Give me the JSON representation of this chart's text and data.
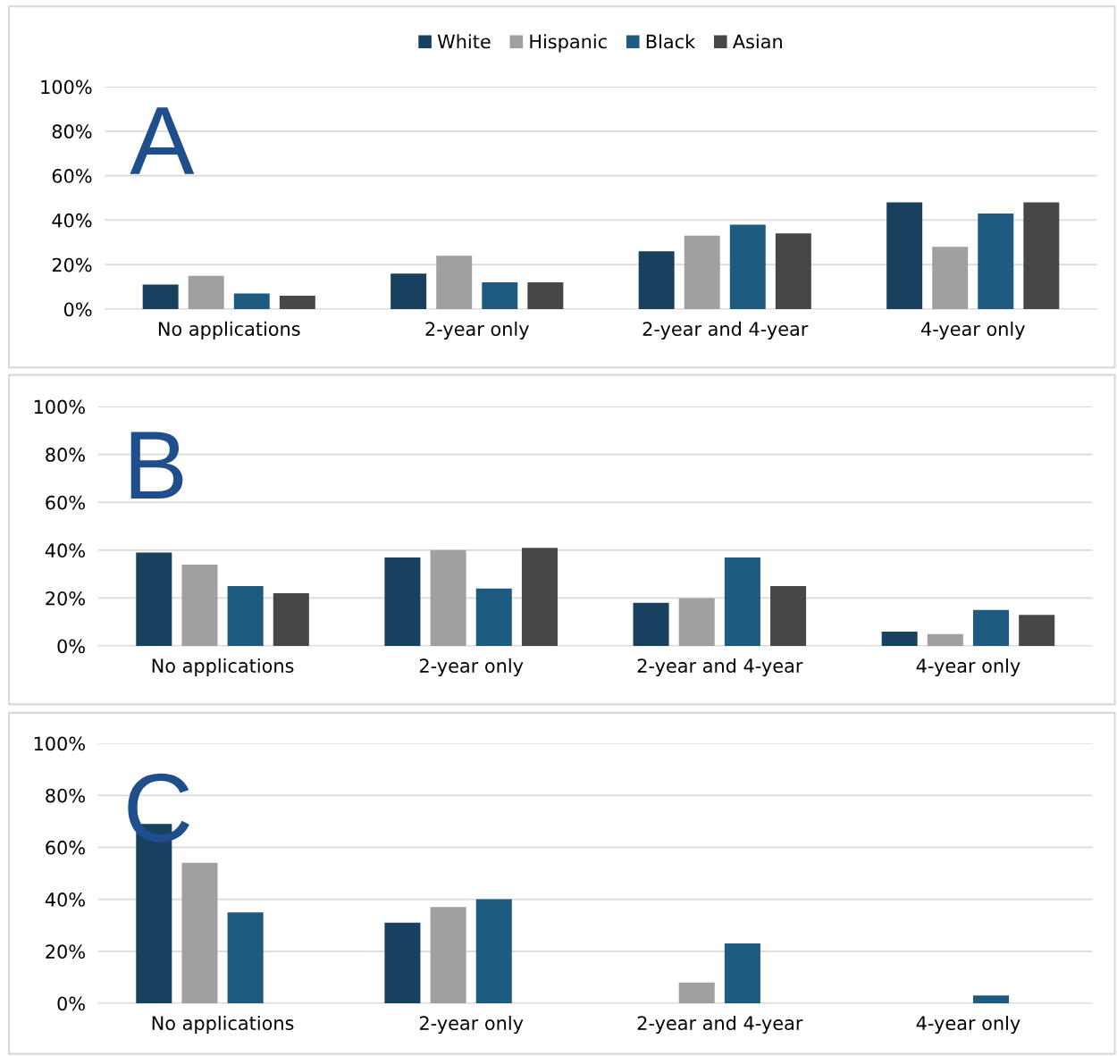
{
  "chart_data": [
    {
      "type": "bar",
      "categories": [
        "No applications",
        "2-year only",
        "2-year and 4-year",
        "4-year only"
      ],
      "annotations": [
        "A"
      ],
      "series": [
        {
          "name": "White",
          "color": "#17415e",
          "values": [
            11,
            16,
            26,
            48
          ]
        },
        {
          "name": "Hispanic",
          "color": "#a0a0a0",
          "values": [
            15,
            24,
            33,
            28
          ]
        },
        {
          "name": "Black",
          "color": "#1f5a80",
          "values": [
            7,
            12,
            38,
            43
          ]
        },
        {
          "name": "Asian",
          "color": "#474747",
          "values": [
            6,
            12,
            34,
            48
          ]
        }
      ],
      "ylim": [
        0,
        100
      ],
      "yticks": [
        {
          "value": 0,
          "label": "0%"
        },
        {
          "value": 20,
          "label": "20%"
        },
        {
          "value": 40,
          "label": "40%"
        },
        {
          "value": 60,
          "label": "60%"
        },
        {
          "value": 80,
          "label": "80%"
        },
        {
          "value": 100,
          "label": "100%"
        }
      ],
      "grid": "y",
      "legend": "top"
    },
    {
      "type": "bar",
      "categories": [
        "No applications",
        "2-year only",
        "2-year and 4-year",
        "4-year only"
      ],
      "annotations": [
        "B"
      ],
      "series": [
        {
          "color": "#17415e",
          "values": [
            39,
            37,
            18,
            6
          ]
        },
        {
          "color": "#a0a0a0",
          "values": [
            34,
            40,
            20,
            5
          ]
        },
        {
          "color": "#1f5a80",
          "values": [
            25,
            24,
            37,
            15
          ]
        },
        {
          "color": "#474747",
          "values": [
            22,
            41,
            25,
            13
          ]
        }
      ],
      "ylim": [
        0,
        100
      ],
      "yticks": [
        {
          "value": 0,
          "label": "0%"
        },
        {
          "value": 20,
          "label": "20%"
        },
        {
          "value": 40,
          "label": "40%"
        },
        {
          "value": 60,
          "label": "60%"
        },
        {
          "value": 80,
          "label": "80%"
        },
        {
          "value": 100,
          "label": "100%"
        }
      ],
      "grid": "y"
    },
    {
      "type": "bar",
      "categories": [
        "No applications",
        "2-year only",
        "2-year and 4-year",
        "4-year only"
      ],
      "annotations": [
        "C"
      ],
      "series": [
        {
          "color": "#17415e",
          "values": [
            69,
            31,
            null,
            null
          ]
        },
        {
          "color": "#a0a0a0",
          "values": [
            54,
            37,
            8,
            null
          ]
        },
        {
          "color": "#1f5a80",
          "values": [
            35,
            40,
            23,
            3
          ]
        },
        {
          "color": "#474747",
          "values": [
            null,
            null,
            null,
            null
          ]
        }
      ],
      "ylim": [
        0,
        100
      ],
      "yticks": [
        {
          "value": 0,
          "label": "0%"
        },
        {
          "value": 20,
          "label": "20%"
        },
        {
          "value": 40,
          "label": "40%"
        },
        {
          "value": 60,
          "label": "60%"
        },
        {
          "value": 80,
          "label": "80%"
        },
        {
          "value": 100,
          "label": "100%"
        }
      ],
      "grid": "y"
    }
  ]
}
